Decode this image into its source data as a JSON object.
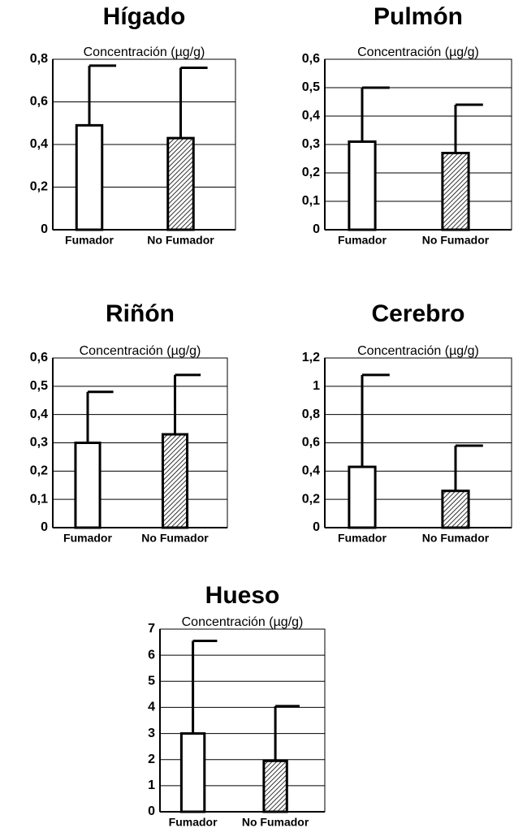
{
  "chart_data": [
    {
      "type": "bar",
      "title": "Hígado",
      "subtitle": "Concentración (µg/g)",
      "categories": [
        "Fumador",
        "No Fumador"
      ],
      "values": [
        0.49,
        0.43
      ],
      "errors": [
        0.28,
        0.33
      ],
      "colors": [
        "#ffffff",
        "#ffffff"
      ],
      "hatch": [
        false,
        true
      ],
      "ylim": [
        0,
        0.8
      ],
      "yticks": [
        0,
        {
          "value": 0.2,
          "label": "0,2"
        },
        {
          "value": 0.4,
          "label": "0,4"
        },
        {
          "value": 0.6,
          "label": "0,6"
        },
        {
          "value": 0.8,
          "label": "0,8"
        }
      ],
      "grid": true
    },
    {
      "type": "bar",
      "title": "Pulmón",
      "subtitle": "Concentración (µg/g)",
      "categories": [
        "Fumador",
        "No Fumador"
      ],
      "values": [
        0.31,
        0.27
      ],
      "errors": [
        0.19,
        0.17
      ],
      "colors": [
        "#ffffff",
        "#ffffff"
      ],
      "hatch": [
        false,
        true
      ],
      "ylim": [
        0,
        0.6
      ],
      "yticks": [
        0,
        {
          "value": 0.1,
          "label": "0,1"
        },
        {
          "value": 0.2,
          "label": "0,2"
        },
        {
          "value": 0.3,
          "label": "0,3"
        },
        {
          "value": 0.4,
          "label": "0,4"
        },
        {
          "value": 0.5,
          "label": "0,5"
        },
        {
          "value": 0.6,
          "label": "0,6"
        }
      ],
      "grid": true
    },
    {
      "type": "bar",
      "title": "Riñón",
      "subtitle": "Concentración (µg/g)",
      "categories": [
        "Fumador",
        "No Fumador"
      ],
      "values": [
        0.3,
        0.33
      ],
      "errors": [
        0.18,
        0.21
      ],
      "colors": [
        "#ffffff",
        "#ffffff"
      ],
      "hatch": [
        false,
        true
      ],
      "ylim": [
        0,
        0.6
      ],
      "yticks": [
        0,
        {
          "value": 0.1,
          "label": "0,1"
        },
        {
          "value": 0.2,
          "label": "0,2"
        },
        {
          "value": 0.3,
          "label": "0,3"
        },
        {
          "value": 0.4,
          "label": "0,4"
        },
        {
          "value": 0.5,
          "label": "0,5"
        },
        {
          "value": 0.6,
          "label": "0,6"
        }
      ],
      "grid": true
    },
    {
      "type": "bar",
      "title": "Cerebro",
      "subtitle": "Concentración (µg/g)",
      "categories": [
        "Fumador",
        "No Fumador"
      ],
      "values": [
        0.43,
        0.26
      ],
      "errors": [
        0.65,
        0.32
      ],
      "colors": [
        "#ffffff",
        "#ffffff"
      ],
      "hatch": [
        false,
        true
      ],
      "ylim": [
        0,
        1.2
      ],
      "yticks": [
        0,
        {
          "value": 0.2,
          "label": "0,2"
        },
        {
          "value": 0.4,
          "label": "0,4"
        },
        {
          "value": 0.6,
          "label": "0,6"
        },
        {
          "value": 0.8,
          "label": "0,8"
        },
        1,
        {
          "value": 1.2,
          "label": "1,2"
        }
      ],
      "grid": true
    },
    {
      "type": "bar",
      "title": "Hueso",
      "subtitle": "Concentración (µg/g)",
      "categories": [
        "Fumador",
        "No Fumador"
      ],
      "values": [
        3.0,
        1.95
      ],
      "errors": [
        3.55,
        2.1
      ],
      "colors": [
        "#ffffff",
        "#ffffff"
      ],
      "hatch": [
        false,
        true
      ],
      "ylim": [
        0,
        7
      ],
      "yticks": [
        0,
        1,
        2,
        3,
        4,
        5,
        6,
        7
      ],
      "grid": true
    }
  ]
}
